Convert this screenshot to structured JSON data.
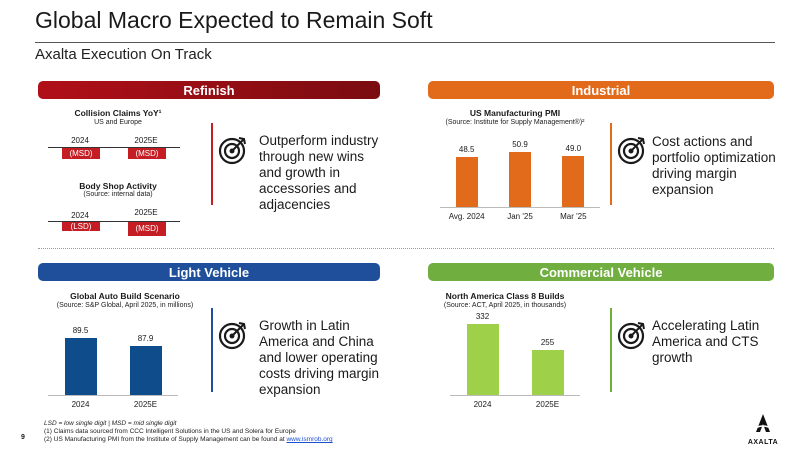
{
  "header": {
    "title": "Global Macro Expected to Remain Soft",
    "subtitle": "Axalta Execution On Track"
  },
  "refinish": {
    "band_label": "Refinish",
    "collision": {
      "title": "Collision Claims YoY¹",
      "subtitle": "US and Europe",
      "year_a": "2024",
      "year_b": "2025E",
      "value_a": "(MSD)",
      "value_b": "(MSD)"
    },
    "bodyshop": {
      "title": "Body Shop Activity",
      "subtitle": "(Source: internal data)",
      "year_a": "2024",
      "year_b": "2025E",
      "value_a": "(LSD)",
      "value_b": "(MSD)"
    },
    "text": "Outperform industry through new wins and growth in accessories and adjacencies"
  },
  "industrial": {
    "band_label": "Industrial",
    "chart_title": "US Manufacturing PMI",
    "chart_subtitle": "(Source: Institute for Supply Management®)²",
    "text": "Cost actions and portfolio optimization driving margin expansion"
  },
  "light_vehicle": {
    "band_label": "Light Vehicle",
    "chart_title": "Global Auto Build Scenario",
    "chart_subtitle": "(Source: S&P Global, April 2025, in millions)",
    "text": "Growth in Latin America and China and lower operating costs driving margin expansion"
  },
  "commercial_vehicle": {
    "band_label": "Commercial Vehicle",
    "chart_title": "North America Class 8 Builds",
    "chart_subtitle": "(Source: ACT, April 2025, in thousands)",
    "text": "Accelerating Latin America and CTS growth"
  },
  "chart_data": [
    {
      "type": "bar",
      "title": "US Manufacturing PMI",
      "subtitle": "(Source: Institute for Supply Management®)²",
      "categories": [
        "Avg. 2024",
        "Jan '25",
        "Mar '25"
      ],
      "values": [
        48.5,
        50.9,
        49.0
      ],
      "value_labels": [
        "48.5",
        "50.9",
        "49.0"
      ],
      "color": "#e26a1b"
    },
    {
      "type": "bar",
      "title": "Global Auto Build Scenario",
      "subtitle": "(Source: S&P Global, April 2025, in millions)",
      "categories": [
        "2024",
        "2025E"
      ],
      "values": [
        89.5,
        87.9
      ],
      "value_labels": [
        "89.5",
        "87.9"
      ],
      "color": "#0f4c8c"
    },
    {
      "type": "bar",
      "title": "North America Class 8 Builds",
      "subtitle": "(Source: ACT, April 2025, in thousands)",
      "categories": [
        "2024",
        "2025E"
      ],
      "values": [
        332,
        255
      ],
      "value_labels": [
        "332",
        "255"
      ],
      "color": "#9fd04a"
    }
  ],
  "footer": {
    "line1": "LSD = low single digit | MSD = mid single digit",
    "line2": "(1) Claims data sourced from CCC Intelligent Solutions in the US and Solera for Europe",
    "line3": "(2) US Manufacturing PMI from the Institute of Supply Management can be found at ",
    "link": "www.ismrob.org",
    "page_number": "9",
    "logo_text": "AXALTA"
  },
  "icons": {
    "target": "target-arrow-icon",
    "logo": "axalta-logo"
  }
}
